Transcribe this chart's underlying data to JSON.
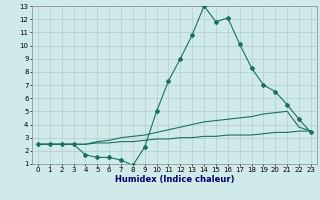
{
  "bg_color": "#d0eaea",
  "grid_color": "#b0cccc",
  "line_color": "#1a7060",
  "xlabel": "Humidex (Indice chaleur)",
  "xlim": [
    -0.5,
    23.5
  ],
  "ylim": [
    1,
    13
  ],
  "xticks": [
    0,
    1,
    2,
    3,
    4,
    5,
    6,
    7,
    8,
    9,
    10,
    11,
    12,
    13,
    14,
    15,
    16,
    17,
    18,
    19,
    20,
    21,
    22,
    23
  ],
  "yticks": [
    1,
    2,
    3,
    4,
    5,
    6,
    7,
    8,
    9,
    10,
    11,
    12,
    13
  ],
  "series_main_x": [
    0,
    1,
    2,
    3,
    4,
    5,
    6,
    7,
    8,
    9,
    10,
    11,
    12,
    13,
    14,
    15,
    16,
    17,
    18,
    19,
    20,
    21,
    22,
    23
  ],
  "series_main_y": [
    2.5,
    2.5,
    2.5,
    2.5,
    1.7,
    1.5,
    1.5,
    1.3,
    0.9,
    2.3,
    5.0,
    7.3,
    9.0,
    10.8,
    13.0,
    11.8,
    12.1,
    10.1,
    8.3,
    7.0,
    6.5,
    5.5,
    4.4,
    3.4
  ],
  "series_mid_x": [
    0,
    1,
    2,
    3,
    4,
    5,
    6,
    7,
    8,
    9,
    10,
    11,
    12,
    13,
    14,
    15,
    16,
    17,
    18,
    19,
    20,
    21,
    22,
    23
  ],
  "series_mid_y": [
    2.5,
    2.5,
    2.5,
    2.5,
    2.5,
    2.7,
    2.8,
    3.0,
    3.1,
    3.2,
    3.4,
    3.6,
    3.8,
    4.0,
    4.2,
    4.3,
    4.4,
    4.5,
    4.6,
    4.8,
    4.9,
    5.0,
    3.8,
    3.5
  ],
  "series_low_x": [
    0,
    1,
    2,
    3,
    4,
    5,
    6,
    7,
    8,
    9,
    10,
    11,
    12,
    13,
    14,
    15,
    16,
    17,
    18,
    19,
    20,
    21,
    22,
    23
  ],
  "series_low_y": [
    2.5,
    2.5,
    2.5,
    2.5,
    2.5,
    2.6,
    2.6,
    2.7,
    2.7,
    2.8,
    2.9,
    2.9,
    3.0,
    3.0,
    3.1,
    3.1,
    3.2,
    3.2,
    3.2,
    3.3,
    3.4,
    3.4,
    3.5,
    3.5
  ],
  "marker": "D",
  "markersize": 2.0,
  "linewidth": 0.8
}
